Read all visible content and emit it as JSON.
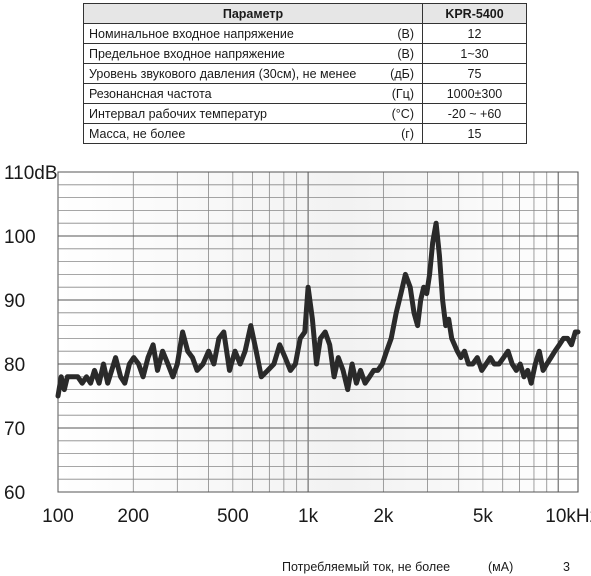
{
  "table": {
    "header": {
      "param": "Параметр",
      "model": "KPR-5400"
    },
    "rows": [
      {
        "name": "Номинальное входное напряжение",
        "unit": "(В)",
        "value": "12"
      },
      {
        "name": "Предельное входное напряжение",
        "unit": "(В)",
        "value": "1~30"
      },
      {
        "name": "Уровень звукового давления (30см), не менее",
        "unit": "(дБ)",
        "value": "75"
      },
      {
        "name": "Резонансная частота",
        "unit": "(Гц)",
        "value": "1000±300"
      },
      {
        "name": "Интервал рабочих температур",
        "unit": "(°C)",
        "value": "-20 ~ +60"
      },
      {
        "name": "Масса, не более",
        "unit": "(г)",
        "value": "15"
      }
    ]
  },
  "footer": {
    "label": "Потребляемый ток, не более",
    "unit": "(мА)",
    "value": "3"
  },
  "chart_data": {
    "type": "line",
    "x_scale": "log",
    "xlim": [
      100,
      12000
    ],
    "ylim": [
      60,
      110
    ],
    "grid": true,
    "line_color": "#2a2a2a",
    "x_ticks": [
      {
        "value": 100,
        "label": "100"
      },
      {
        "value": 200,
        "label": "200"
      },
      {
        "value": 500,
        "label": "500"
      },
      {
        "value": 1000,
        "label": "1k"
      },
      {
        "value": 2000,
        "label": "2k"
      },
      {
        "value": 5000,
        "label": "5k"
      },
      {
        "value": 10000,
        "label": "10kHz"
      }
    ],
    "y_ticks": [
      {
        "value": 60,
        "label": "60"
      },
      {
        "value": 70,
        "label": "70"
      },
      {
        "value": 80,
        "label": "80"
      },
      {
        "value": 90,
        "label": "90"
      },
      {
        "value": 100,
        "label": "100"
      },
      {
        "value": 110,
        "label": "110dB"
      }
    ],
    "series": [
      {
        "x": [
          100,
          103,
          106,
          109,
          112,
          116,
          120,
          125,
          130,
          135,
          140,
          146,
          152,
          158,
          164,
          170,
          178,
          185,
          193,
          201,
          210,
          219,
          229,
          240,
          250,
          262,
          275,
          288,
          300,
          315,
          330,
          345,
          360,
          380,
          400,
          420,
          440,
          460,
          485,
          510,
          535,
          560,
          590,
          620,
          650,
          690,
          730,
          770,
          810,
          850,
          890,
          930,
          970,
          1000,
          1040,
          1080,
          1120,
          1170,
          1220,
          1270,
          1320,
          1380,
          1440,
          1500,
          1560,
          1620,
          1690,
          1760,
          1830,
          1900,
          1980,
          2060,
          2150,
          2250,
          2350,
          2450,
          2560,
          2650,
          2740,
          2820,
          2900,
          2980,
          3060,
          3150,
          3250,
          3350,
          3450,
          3550,
          3650,
          3750,
          3850,
          3950,
          4080,
          4220,
          4380,
          4550,
          4750,
          4950,
          5150,
          5350,
          5550,
          5800,
          6050,
          6300,
          6550,
          6800,
          7050,
          7300,
          7550,
          7800,
          8100,
          8400,
          8700,
          9000,
          9350,
          9700,
          10100,
          10500,
          10900,
          11300,
          11700,
          12000
        ],
        "y": [
          75,
          78,
          76,
          78,
          78,
          78,
          78,
          77,
          78,
          77,
          79,
          77,
          80,
          77,
          79,
          81,
          78,
          77,
          80,
          81,
          80,
          78,
          81,
          83,
          79,
          82,
          80,
          78,
          80,
          85,
          82,
          81,
          79,
          80,
          82,
          80,
          84,
          85,
          79,
          82,
          80,
          82,
          86,
          82,
          78,
          79,
          80,
          83,
          81,
          79,
          80,
          84,
          85,
          92,
          87,
          80,
          84,
          85,
          83,
          78,
          81,
          79,
          76,
          80,
          77,
          79,
          77,
          78,
          79,
          79,
          80,
          82,
          84,
          88,
          91,
          94,
          92,
          88,
          86,
          90,
          92,
          91,
          94,
          99,
          102,
          97,
          90,
          86,
          87,
          84,
          83,
          82,
          81,
          82,
          80,
          80,
          81,
          79,
          80,
          81,
          80,
          80,
          81,
          82,
          80,
          79,
          80,
          78,
          79,
          77,
          80,
          82,
          79,
          80,
          81,
          82,
          83,
          84,
          84,
          83,
          85,
          85
        ]
      }
    ]
  }
}
